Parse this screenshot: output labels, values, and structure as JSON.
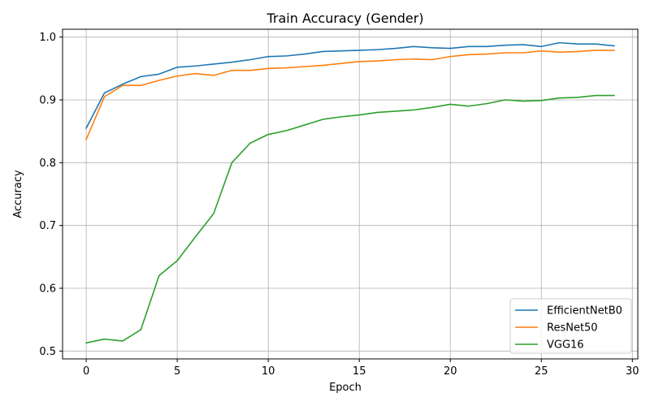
{
  "chart_data": {
    "type": "line",
    "title": "Train Accuracy (Gender)",
    "xlabel": "Epoch",
    "ylabel": "Accuracy",
    "xlim": [
      -1.3,
      30.3
    ],
    "ylim": [
      0.4875,
      1.0125
    ],
    "xticks": [
      0,
      5,
      10,
      15,
      20,
      25,
      30
    ],
    "yticks": [
      0.5,
      0.6,
      0.7,
      0.8,
      0.9,
      1.0
    ],
    "ytick_labels": [
      "0.5",
      "0.6",
      "0.7",
      "0.8",
      "0.9",
      "1.0"
    ],
    "grid": true,
    "legend_position": "lower-right",
    "x": [
      0,
      1,
      2,
      3,
      4,
      5,
      6,
      7,
      8,
      9,
      10,
      11,
      12,
      13,
      14,
      15,
      16,
      17,
      18,
      19,
      20,
      21,
      22,
      23,
      24,
      25,
      26,
      27,
      28,
      29
    ],
    "series": [
      {
        "name": "EfficientNetB0",
        "color": "#1f77b4",
        "values": [
          0.855,
          0.911,
          0.925,
          0.937,
          0.941,
          0.952,
          0.954,
          0.957,
          0.96,
          0.964,
          0.969,
          0.97,
          0.973,
          0.977,
          0.978,
          0.979,
          0.98,
          0.982,
          0.985,
          0.983,
          0.982,
          0.985,
          0.985,
          0.987,
          0.988,
          0.985,
          0.991,
          0.989,
          0.989,
          0.986
        ]
      },
      {
        "name": "ResNet50",
        "color": "#ff7f0e",
        "values": [
          0.837,
          0.905,
          0.923,
          0.923,
          0.931,
          0.938,
          0.942,
          0.939,
          0.947,
          0.947,
          0.95,
          0.951,
          0.953,
          0.955,
          0.958,
          0.961,
          0.962,
          0.964,
          0.965,
          0.964,
          0.969,
          0.972,
          0.973,
          0.975,
          0.975,
          0.978,
          0.976,
          0.977,
          0.979,
          0.979
        ]
      },
      {
        "name": "VGG16",
        "color": "#2ca02c",
        "values": [
          0.513,
          0.519,
          0.516,
          0.534,
          0.62,
          0.644,
          0.682,
          0.719,
          0.8,
          0.831,
          0.845,
          0.851,
          0.86,
          0.869,
          0.873,
          0.876,
          0.88,
          0.882,
          0.884,
          0.888,
          0.893,
          0.89,
          0.894,
          0.9,
          0.898,
          0.899,
          0.903,
          0.904,
          0.907,
          0.907
        ]
      }
    ]
  }
}
